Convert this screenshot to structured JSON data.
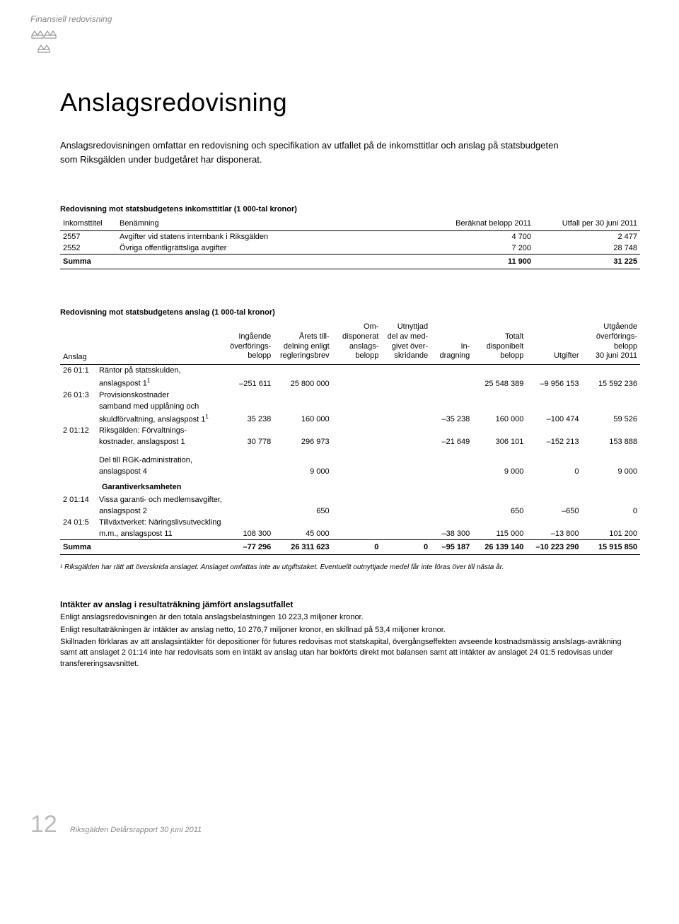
{
  "header": {
    "category": "Finansiell redovisning",
    "title": "Anslagsredovisning",
    "intro": "Anslagsredovisningen omfattar en redovisning och specifikation av utfallet på de inkomsttitlar och anslag på statsbudgeten som Riksgälden under budgetåret har disponerat."
  },
  "table1": {
    "title": "Redovisning mot statsbudgetens inkomsttitlar (1 000-tal kronor)",
    "headers": {
      "c0": "Inkomsttitel",
      "c1": "Benämning",
      "c2": "Beräknat belopp 2011",
      "c3": "Utfall per 30 juni 2011"
    },
    "rows": [
      {
        "c0": "2557",
        "c1": "Avgifter vid statens internbank i Riksgälden",
        "c2": "4 700",
        "c3": "2 477"
      },
      {
        "c0": "2552",
        "c1": "Övriga offentligrättsliga avgifter",
        "c2": "7 200",
        "c3": "28 748"
      }
    ],
    "sum": {
      "label": "Summa",
      "c2": "11 900",
      "c3": "31 225"
    }
  },
  "table2": {
    "title": "Redovisning mot statsbudgetens anslag (1 000-tal kronor)",
    "headers": {
      "c0": "Anslag",
      "c1": "Ingående\növerförings-\nbelopp",
      "c2": "Årets till-\ndelning enligt\nregleringsbrev",
      "c3": "Om-\ndisponerat\nanslags-\nbelopp",
      "c4": "Utnyttjad\ndel av med-\ngivet över-\nskridande",
      "c5": "In-\ndragning",
      "c6": "Totalt\ndisponibelt\nbelopp",
      "c7": "Utgifter",
      "c8": "Utgående\növerförings-\nbelopp\n30 juni 2011"
    },
    "rows": [
      {
        "code": "26 01:1",
        "desc": "Räntor på statsskulden,\nanslagspost 1",
        "sup": "1",
        "v": [
          "–251 611",
          "25 800 000",
          "",
          "",
          "",
          "25 548 389",
          "–9 956 153",
          "15 592 236"
        ]
      },
      {
        "code": "26 01:3",
        "desc": "Provisionskostnader\nsamband med upplåning och\nskuldförvaltning, anslagspost 1",
        "sup": "1",
        "v": [
          "35 238",
          "160 000",
          "",
          "",
          "–35 238",
          "160 000",
          "–100 474",
          "59 526"
        ]
      },
      {
        "code": "2 01:12",
        "desc": "Riksgälden: Förvaltnings-\nkostnader, anslagspost 1",
        "v": [
          "30 778",
          "296 973",
          "",
          "",
          "–21 649",
          "306 101",
          "–152 213",
          "153 888"
        ]
      },
      {
        "spacer": true
      },
      {
        "code": "",
        "desc": "Del till RGK-administration,\nanslagspost 4",
        "v": [
          "",
          "9 000",
          "",
          "",
          "",
          "9 000",
          "0",
          "9 000"
        ]
      },
      {
        "garanti": true,
        "desc": "Garantiverksamheten"
      },
      {
        "code": "2 01:14",
        "desc": "Vissa garanti- och medlemsavgifter,\nanslagspost 2",
        "v": [
          "",
          "650",
          "",
          "",
          "",
          "650",
          "–650",
          "0"
        ]
      },
      {
        "code": "24 01:5",
        "desc": "Tillväxtverket: Näringslivsutveckling\nm.m., anslagspost 11",
        "v": [
          "108 300",
          "45 000",
          "",
          "",
          "–38 300",
          "115 000",
          "–13 800",
          "101 200"
        ]
      }
    ],
    "sum": {
      "label": "Summa",
      "v": [
        "–77 296",
        "26 311 623",
        "0",
        "0",
        "–95 187",
        "26 139 140",
        "–10 223 290",
        "15 915 850"
      ]
    }
  },
  "footnote": "¹ Riksgälden har rätt att överskrida anslaget. Anslaget omfattas inte av utgiftstaket. Eventuellt outnyttjade medel får inte föras över till nästa år.",
  "section": {
    "title": "Intäkter av anslag i resultaträkning jämfört anslagsutfallet",
    "p1": "Enligt anslagsredovisningen är den totala anslagsbelastningen 10 223,3 miljoner kronor.",
    "p2": "Enligt resultaträkningen är intäkter av anslag netto, 10 276,7 miljoner kronor, en skillnad på 53,4 miljoner kronor.",
    "p3": "Skillnaden förklaras av att anslagsintäkter för depositioner för futures redovisas mot statskapital, övergångseffekten avseende kostnadsmässig anslslags-avräkning samt att anslaget 2 01:14 inte har redovisats som en intäkt av anslag utan har bokförts direkt mot balansen samt att intäkter av anslaget 24 01:5 redovisas under transfereringsavsnittet."
  },
  "footer": {
    "page": "12",
    "text": "Riksgälden Delårsrapport 30 juni 2011"
  },
  "colors": {
    "text_muted": "#888888",
    "rule": "#000000"
  }
}
